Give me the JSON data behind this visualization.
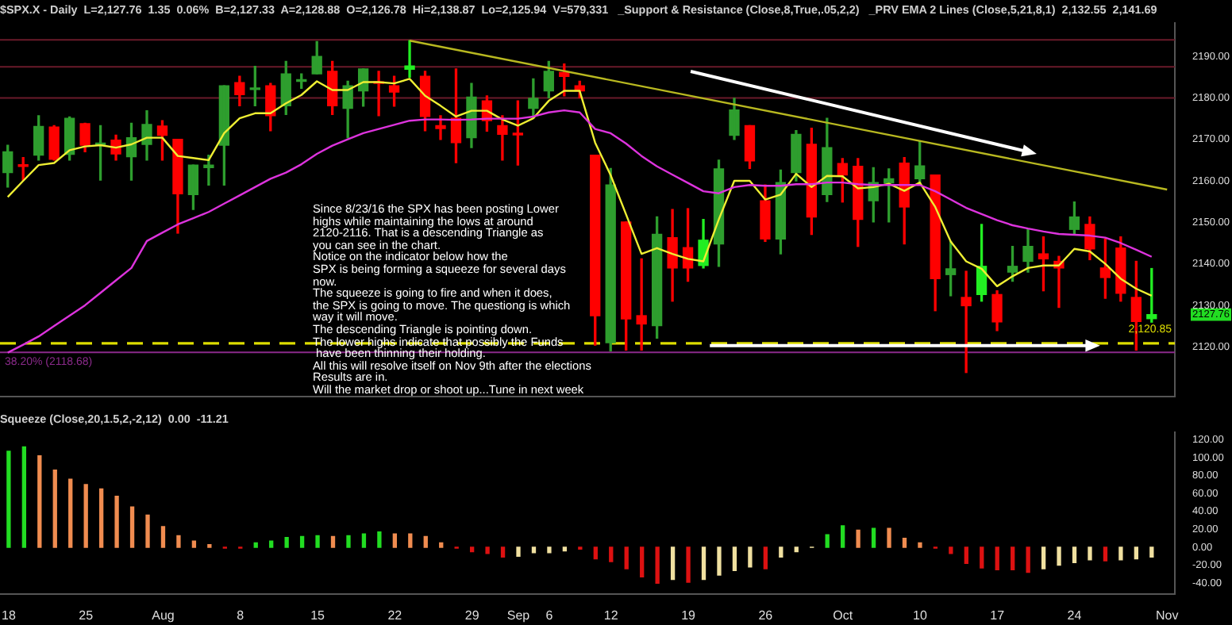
{
  "chart_data": [
    {
      "type": "candlestick",
      "title": "$SPX.X - Daily  L=2,127.76  1.35  0.06%  B=2,127.33  A=2,128.88  O=2,126.78  Hi=2,138.87  Lo=2,125.94  V=579,331   _Support & Resistance (Close,8,True,.05,2,2)   _PRV EMA 2 Lines (Close,5,21,8,1)  2,132.55  2,141.69",
      "categories": [
        null,
        null,
        null,
        null,
        null,
        null,
        null,
        null,
        null,
        null,
        null,
        null,
        null,
        null,
        null,
        null,
        null,
        null,
        null,
        null,
        null,
        null,
        null,
        null,
        null,
        null,
        null,
        null,
        null,
        null,
        null,
        null,
        null,
        null,
        null,
        null,
        null,
        null,
        null,
        null,
        null,
        null,
        null,
        null,
        null,
        null,
        null,
        null,
        null,
        null,
        null,
        null,
        null,
        null,
        null,
        null,
        null,
        null,
        null,
        null,
        null,
        null,
        null,
        null,
        null,
        null,
        null,
        null,
        null,
        null,
        null,
        null,
        null,
        null,
        null,
        null
      ],
      "ohlc": [
        [
          2162.0,
          2168.6,
          2158.5,
          2167.0
        ],
        [
          2163.8,
          2165.6,
          2160.2,
          2163.5
        ],
        [
          2166.2,
          2175.7,
          2165.0,
          2173.1
        ],
        [
          2173.0,
          2173.3,
          2165.0,
          2165.2
        ],
        [
          2166.4,
          2175.4,
          2165.0,
          2175.1
        ],
        [
          2173.8,
          2173.9,
          2167.0,
          2168.6
        ],
        [
          2168.7,
          2173.3,
          2160.2,
          2169.0
        ],
        [
          2169.8,
          2171.0,
          2165.0,
          2166.5
        ],
        [
          2165.8,
          2173.9,
          2160.2,
          2170.4
        ],
        [
          2168.8,
          2176.9,
          2165.0,
          2173.6
        ],
        [
          2173.2,
          2174.5,
          2165.0,
          2171.0
        ],
        [
          2170.0,
          2170.0,
          2147.4,
          2156.9
        ],
        [
          2156.7,
          2163.8,
          2153.1,
          2163.8
        ],
        [
          2163.2,
          2166.2,
          2159.0,
          2163.8
        ],
        [
          2168.6,
          2182.9,
          2159.0,
          2182.9
        ],
        [
          2183.7,
          2185.2,
          2178.1,
          2180.8
        ],
        [
          2182.0,
          2187.6,
          2178.1,
          2182.3
        ],
        [
          2182.9,
          2183.5,
          2172.1,
          2175.7
        ],
        [
          2178.1,
          2188.8,
          2176.0,
          2185.8
        ],
        [
          2184.0,
          2185.8,
          2182.3,
          2184.3
        ],
        [
          2185.8,
          2193.6,
          2185.8,
          2190.0
        ],
        [
          2186.4,
          2188.8,
          2176.0,
          2178.1
        ],
        [
          2177.5,
          2184.0,
          2170.4,
          2182.9
        ],
        [
          2181.7,
          2187.0,
          2178.0,
          2187.0
        ],
        [
          2183.8,
          2186.4,
          2175.7,
          2183.5
        ],
        [
          2182.9,
          2185.2,
          2178.0,
          2181.4
        ],
        [
          2186.9,
          2193.8,
          2185.0,
          2187.7
        ],
        [
          2185.2,
          2186.4,
          2172.1,
          2175.5
        ],
        [
          2173.3,
          2175.7,
          2170.0,
          2172.6
        ],
        [
          2175.1,
          2187.0,
          2164.4,
          2169.2
        ],
        [
          2170.4,
          2183.5,
          2168.0,
          2180.2
        ],
        [
          2179.3,
          2180.5,
          2172.0,
          2174.5
        ],
        [
          2173.3,
          2175.7,
          2165.0,
          2171.2
        ],
        [
          2171.5,
          2179.3,
          2163.8,
          2171.1
        ],
        [
          2177.5,
          2184.6,
          2175.1,
          2179.9
        ],
        [
          2181.7,
          2188.8,
          2180.0,
          2186.4
        ],
        [
          2186.1,
          2188.2,
          2180.5,
          2185.2
        ],
        [
          2182.9,
          2184.0,
          2180.0,
          2181.7
        ],
        [
          2166.2,
          2166.2,
          2120.4,
          2127.5
        ],
        [
          2121.0,
          2163.0,
          2119.0,
          2159.0
        ],
        [
          2150.1,
          2150.1,
          2119.2,
          2126.7
        ],
        [
          2127.5,
          2141.2,
          2119.2,
          2125.5
        ],
        [
          2125.1,
          2151.3,
          2122.1,
          2147.1
        ],
        [
          2146.3,
          2153.1,
          2131.0,
          2139.0
        ],
        [
          2143.9,
          2153.3,
          2135.8,
          2139.0
        ],
        [
          2139.6,
          2150.7,
          2139.0,
          2145.7
        ],
        [
          2144.8,
          2165.0,
          2139.4,
          2162.9
        ],
        [
          2171.0,
          2179.9,
          2170.0,
          2177.1
        ],
        [
          2173.3,
          2173.3,
          2163.0,
          2164.8
        ],
        [
          2155.2,
          2159.0,
          2145.4,
          2146.0
        ],
        [
          2146.0,
          2162.6,
          2142.4,
          2159.6
        ],
        [
          2162.0,
          2172.1,
          2160.0,
          2171.2
        ],
        [
          2168.8,
          2172.7,
          2147.1,
          2151.3
        ],
        [
          2156.7,
          2175.1,
          2155.0,
          2168.0
        ],
        [
          2164.2,
          2165.4,
          2154.9,
          2161.4
        ],
        [
          2163.5,
          2165.4,
          2144.2,
          2150.7
        ],
        [
          2155.2,
          2163.2,
          2150.1,
          2159.6
        ],
        [
          2159.5,
          2162.9,
          2150.1,
          2160.5
        ],
        [
          2164.3,
          2165.6,
          2144.8,
          2153.7
        ],
        [
          2160.5,
          2169.5,
          2159.0,
          2163.6
        ],
        [
          2161.4,
          2161.4,
          2128.7,
          2136.4
        ],
        [
          2137.4,
          2145.4,
          2132.3,
          2138.8
        ],
        [
          2131.9,
          2138.2,
          2113.8,
          2129.9
        ],
        [
          2132.6,
          2149.5,
          2131.0,
          2139.4
        ],
        [
          2132.6,
          2133.5,
          2123.9,
          2126.0
        ],
        [
          2138.0,
          2144.2,
          2135.8,
          2139.4
        ],
        [
          2140.6,
          2148.3,
          2138.0,
          2144.2
        ],
        [
          2142.4,
          2146.5,
          2133.5,
          2141.2
        ],
        [
          2140.6,
          2141.8,
          2129.5,
          2139.0
        ],
        [
          2148.3,
          2154.9,
          2147.0,
          2151.3
        ],
        [
          2149.5,
          2151.3,
          2141.0,
          2143.6
        ],
        [
          2139.0,
          2146.0,
          2131.7,
          2136.7
        ],
        [
          2143.8,
          2146.5,
          2131.0,
          2132.9
        ],
        [
          2131.9,
          2140.6,
          2119.2,
          2126.1
        ],
        [
          2126.78,
          2138.87,
          2125.94,
          2127.76
        ],
        null
      ],
      "colors": [
        "#2e9e2e",
        "#ff0000",
        "#2e9e2e",
        "#ff0000",
        "#2e9e2e",
        "#ff0000",
        "#2e9e2e",
        "#ff0000",
        "#2e9e2e",
        "#2e9e2e",
        "#ff0000",
        "#ff0000",
        "#2e9e2e",
        "#2e9e2e",
        "#2e9e2e",
        "#ff0000",
        "#2e9e2e",
        "#ff0000",
        "#2e9e2e",
        "#2e9e2e",
        "#2e9e2e",
        "#ff0000",
        "#2e9e2e",
        "#2e9e2e",
        "#ff0000",
        "#ff0000",
        "#22ee22",
        "#ff0000",
        "#ff0000",
        "#ff0000",
        "#2e9e2e",
        "#ff0000",
        "#ff0000",
        "#ff0000",
        "#2e9e2e",
        "#2e9e2e",
        "#ff0000",
        "#ff0000",
        "#ff0000",
        "#2e9e2e",
        "#ff0000",
        "#ff0000",
        "#2e9e2e",
        "#ff0000",
        "#ff0000",
        "#22ee22",
        "#2e9e2e",
        "#2e9e2e",
        "#ff0000",
        "#ff0000",
        "#2e9e2e",
        "#2e9e2e",
        "#ff0000",
        "#2e9e2e",
        "#ff0000",
        "#ff0000",
        "#2e9e2e",
        "#2e9e2e",
        "#ff0000",
        "#2e9e2e",
        "#ff0000",
        "#2e9e2e",
        "#ff0000",
        "#22ee22",
        "#ff0000",
        "#2e9e2e",
        "#2e9e2e",
        "#ff0000",
        "#ff0000",
        "#2e9e2e",
        "#ff0000",
        "#ff0000",
        "#ff0000",
        "#ff0000",
        "#22ee22",
        null
      ],
      "series": [
        {
          "type": "line",
          "color": "#dd33dd",
          "values": [
            2118.6,
            2120.5,
            2122.5,
            2125.0,
            2127.5,
            2130.0,
            2133.0,
            2136.0,
            2139.0,
            2145.5,
            2147.5,
            2149.5,
            2151.0,
            2152.5,
            2154.5,
            2156.5,
            2158.5,
            2160.5,
            2162.0,
            2164.0,
            2166.5,
            2168.5,
            2170.0,
            2171.5,
            2172.5,
            2173.5,
            2174.5,
            2174.8,
            2174.8,
            2174.7,
            2174.8,
            2175.0,
            2175.0,
            2175.0,
            2175.5,
            2176.5,
            2177.0,
            2176.5,
            2172.5,
            2171.5,
            2169.0,
            2166.0,
            2163.5,
            2161.5,
            2159.5,
            2157.5,
            2157.0,
            2158.5,
            2159.0,
            2158.8,
            2158.8,
            2159.2,
            2159.2,
            2159.6,
            2159.6,
            2159.2,
            2159.0,
            2159.0,
            2159.0,
            2159.0,
            2157.5,
            2155.5,
            2153.5,
            2152.0,
            2150.5,
            2149.3,
            2148.5,
            2147.8,
            2147.2,
            2147.0,
            2146.8,
            2146.3,
            2145.0,
            2143.4,
            2141.7,
            null
          ]
        },
        {
          "type": "line",
          "color": "#eeee33",
          "values": [
            2156.1,
            2160.0,
            2163.8,
            2164.3,
            2167.4,
            2168.3,
            2168.6,
            2168.0,
            2168.8,
            2170.4,
            2170.4,
            2166.0,
            2165.5,
            2165.0,
            2171.5,
            2175.1,
            2176.3,
            2176.3,
            2178.7,
            2180.7,
            2184.0,
            2181.9,
            2181.9,
            2183.8,
            2183.8,
            2183.5,
            2184.6,
            2180.5,
            2178.1,
            2175.5,
            2176.9,
            2176.9,
            2174.8,
            2173.3,
            2175.1,
            2179.3,
            2181.7,
            2181.7,
            2169.2,
            2161.4,
            2151.9,
            2142.4,
            2143.8,
            2142.4,
            2141.2,
            2140.6,
            2150.7,
            2160.0,
            2160.0,
            2155.5,
            2156.7,
            2161.7,
            2158.5,
            2161.2,
            2161.1,
            2158.2,
            2158.5,
            2159.3,
            2157.6,
            2159.6,
            2153.7,
            2145.4,
            2140.6,
            2138.8,
            2134.6,
            2137.0,
            2139.0,
            2139.6,
            2139.6,
            2143.6,
            2143.0,
            2140.0,
            2136.4,
            2134.0,
            2132.3,
            null
          ]
        },
        {
          "type": "line",
          "color": "#b8b820",
          "values": [
            null,
            null,
            null,
            null,
            null,
            null,
            null,
            null,
            null,
            null,
            null,
            null,
            null,
            null,
            null,
            null,
            null,
            null,
            null,
            null,
            null,
            null,
            null,
            null,
            null,
            null,
            2193.8,
            null,
            null,
            null,
            null,
            null,
            null,
            null,
            null,
            null,
            null,
            null,
            null,
            null,
            null,
            null,
            null,
            null,
            null,
            null,
            null,
            null,
            null,
            null,
            null,
            null,
            null,
            null,
            null,
            null,
            null,
            null,
            null,
            null,
            null,
            null,
            null,
            null,
            null,
            null,
            null,
            null,
            null,
            null,
            null,
            null,
            null,
            null,
            null,
            2157.9
          ]
        }
      ],
      "ylim": [
        2108,
        2198
      ],
      "yticks": [
        {
          "value": 2120,
          "label": "2120.00"
        },
        {
          "value": 2127.76,
          "label": "2127.76"
        },
        {
          "value": 2130,
          "label": "2130.00"
        },
        {
          "value": 2140,
          "label": "2140.00"
        },
        {
          "value": 2150,
          "label": "2150.00"
        },
        {
          "value": 2160,
          "label": "2160.00"
        },
        {
          "value": 2170,
          "label": "2170.00"
        },
        {
          "value": 2180,
          "label": "2180.00"
        },
        {
          "value": 2190,
          "label": "2190.00"
        }
      ],
      "ref_lines": [
        {
          "axis": "y",
          "value": 2120.85,
          "label": "2,120.85",
          "color": "#dddd00",
          "line_style": "dashed"
        },
        {
          "axis": "y",
          "value": 2118.68,
          "label": "38.20% (2118.68)",
          "color": "#8a2a8a",
          "line_style": "solid"
        },
        {
          "axis": "y",
          "value": 2194,
          "label": null,
          "color": "#6a1a2a",
          "line_style": "solid"
        },
        {
          "axis": "y",
          "value": 2187.5,
          "label": null,
          "color": "#6a1a2a",
          "line_style": "solid"
        },
        {
          "axis": "y",
          "value": 2180,
          "label": null,
          "color": "#6a1a2a",
          "line_style": "solid"
        }
      ],
      "annotations": [
        "Since 8/23/16 the SPX has been posting Lower",
        "highs while maintaining the lows at around",
        "2120-2116. That is a descending Triangle as",
        "you can see in the chart.",
        "Notice on the indicator below how the",
        "SPX is being forming a squeeze for several days",
        "now.",
        "The squeeze is going to fire and when it does,",
        "the SPX is going to move. The questiong is which",
        "way it will move.",
        "The descending Triangle is pointing down.",
        "The lower highs indicate that possibly the Funds",
        " have been thinning their holding.",
        "All this will resolve itself on Nov 9th after the elections",
        "Results are in.",
        "Will the market drop or shoot up...Tune in next week"
      ],
      "tick_labels": "y"
    },
    {
      "type": "bar",
      "title": "Squeeze (Close,20,1.5,2,-2,12)  0.00  -11.21",
      "categories": [
        "18",
        null,
        null,
        null,
        null,
        "25",
        null,
        null,
        null,
        null,
        "Aug",
        null,
        null,
        null,
        null,
        "8",
        null,
        null,
        null,
        null,
        "15",
        null,
        null,
        null,
        null,
        "22",
        null,
        null,
        null,
        null,
        "29",
        null,
        null,
        "Sep",
        null,
        "6",
        null,
        null,
        null,
        "12",
        null,
        null,
        null,
        null,
        "19",
        null,
        null,
        null,
        null,
        "26",
        null,
        null,
        null,
        null,
        "Oct",
        null,
        null,
        null,
        null,
        "10",
        null,
        null,
        null,
        null,
        "17",
        null,
        null,
        null,
        null,
        "24",
        null,
        null,
        null,
        null,
        null,
        "Nov"
      ],
      "values": [
        107,
        112,
        102,
        86,
        76,
        70,
        65,
        57,
        45,
        36,
        23,
        13,
        7,
        3,
        -1,
        -1,
        5,
        7,
        11,
        12,
        13,
        12,
        13,
        15,
        17,
        15,
        15,
        12,
        5,
        -1,
        -5,
        -7,
        -11,
        -10,
        -6,
        -6,
        -4,
        -2,
        -13,
        -16,
        -24,
        -33,
        -40,
        -36,
        -39,
        -36,
        -31,
        -26,
        -22,
        -24,
        -11,
        -5,
        0,
        14,
        24,
        19,
        21,
        21,
        10,
        5,
        -1,
        -7,
        -18,
        -23,
        -25,
        -25,
        -28,
        -24,
        -20,
        -17,
        -14,
        -15,
        -14,
        -13,
        -11,
        null
      ],
      "colors": [
        "#22dd22",
        "#22dd22",
        "#f08c50",
        "#f08c50",
        "#f08c50",
        "#f08c50",
        "#f08c50",
        "#f08c50",
        "#f08c50",
        "#f08c50",
        "#f08c50",
        "#f08c50",
        "#f08c50",
        "#f08c50",
        "#dd1111",
        "#dd1111",
        "#22dd22",
        "#22dd22",
        "#22dd22",
        "#22dd22",
        "#22dd22",
        "#f08c50",
        "#22dd22",
        "#22dd22",
        "#22dd22",
        "#f08c50",
        "#f08c50",
        "#f08c50",
        "#f08c50",
        "#dd1111",
        "#dd1111",
        "#dd1111",
        "#dd1111",
        "#f0e0a0",
        "#f0e0a0",
        "#f0e0a0",
        "#f0e0a0",
        "#dd1111",
        "#dd1111",
        "#dd1111",
        "#dd1111",
        "#dd1111",
        "#dd1111",
        "#f0e0a0",
        "#dd1111",
        "#f0e0a0",
        "#f0e0a0",
        "#f0e0a0",
        "#f0e0a0",
        "#dd1111",
        "#f0e0a0",
        "#f0e0a0",
        "#f0e0a0",
        "#22dd22",
        "#22dd22",
        "#f08c50",
        "#22dd22",
        "#f08c50",
        "#f08c50",
        "#f08c50",
        "#dd1111",
        "#dd1111",
        "#dd1111",
        "#dd1111",
        "#dd1111",
        "#dd1111",
        "#dd1111",
        "#f0e0a0",
        "#f0e0a0",
        "#f0e0a0",
        "#f0e0a0",
        "#dd1111",
        "#f0e0a0",
        "#f0e0a0",
        "#f0e0a0",
        null
      ],
      "ylim": [
        -52,
        128
      ],
      "yticks": [
        {
          "value": -40,
          "label": "-40.00"
        },
        {
          "value": -20,
          "label": "-20.00"
        },
        {
          "value": 0,
          "label": "0.00"
        },
        {
          "value": 20,
          "label": "20.00"
        },
        {
          "value": 40,
          "label": "40.00"
        },
        {
          "value": 60,
          "label": "60.00"
        },
        {
          "value": 80,
          "label": "80.00"
        },
        {
          "value": 100,
          "label": "100.00"
        },
        {
          "value": 120,
          "label": "120.00"
        }
      ]
    }
  ]
}
